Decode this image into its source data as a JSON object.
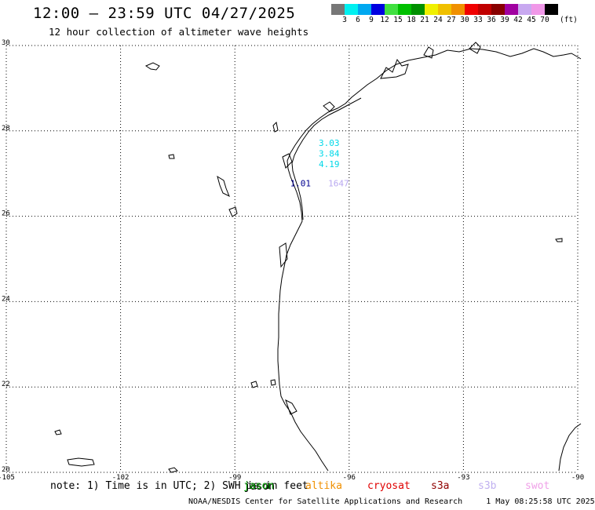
{
  "header": {
    "title": "12:00 – 23:59 UTC 04/27/2025",
    "subtitle": "12 hour collection of altimeter wave heights"
  },
  "scale": {
    "unit": "(ft)",
    "bins": [
      {
        "label": "3",
        "color": "#777777"
      },
      {
        "label": "6",
        "color": "#00f0f0"
      },
      {
        "label": "9",
        "color": "#00a8f0"
      },
      {
        "label": "12",
        "color": "#0000e0"
      },
      {
        "label": "15",
        "color": "#40e040"
      },
      {
        "label": "18",
        "color": "#00c000"
      },
      {
        "label": "21",
        "color": "#009000"
      },
      {
        "label": "24",
        "color": "#f0f000"
      },
      {
        "label": "27",
        "color": "#f0c000"
      },
      {
        "label": "30",
        "color": "#f09000"
      },
      {
        "label": "33",
        "color": "#f00000"
      },
      {
        "label": "36",
        "color": "#c00000"
      },
      {
        "label": "39",
        "color": "#880000"
      },
      {
        "label": "42",
        "color": "#a000a0"
      },
      {
        "label": "45",
        "color": "#c8a8f0"
      },
      {
        "label": "70",
        "color": "#f098e8"
      },
      {
        "label": "",
        "color": "#000000"
      }
    ]
  },
  "map": {
    "lon_range": [
      -105,
      -90
    ],
    "lat_range": [
      20,
      30
    ],
    "lon_ticks": [
      "-105",
      "-102",
      "-99",
      "-96",
      "-93",
      "-90"
    ],
    "lat_ticks": [
      "30",
      "28",
      "26",
      "24",
      "22",
      "20"
    ],
    "observations": [
      {
        "value": "3.03",
        "lon": -96.8,
        "lat": 27.65,
        "color": "#00d8e8"
      },
      {
        "value": "3.84",
        "lon": -96.8,
        "lat": 27.4,
        "color": "#00d8e8"
      },
      {
        "value": "4.19",
        "lon": -96.8,
        "lat": 27.15,
        "color": "#00d8e8"
      },
      {
        "value": "1.01",
        "lon": -97.55,
        "lat": 26.7,
        "color": "#000090"
      },
      {
        "value": "1647",
        "lon": -96.55,
        "lat": 26.7,
        "color": "#b8a8f0"
      }
    ]
  },
  "footer": {
    "note": "note: 1) Time is in UTC; 2) SWH is in feet",
    "satellites": [
      {
        "name": "jason",
        "color": "#00a000",
        "shadow": true
      },
      {
        "name": "altika",
        "color": "#f09000",
        "shadow": false
      },
      {
        "name": "cryosat",
        "color": "#e00000",
        "shadow": false
      },
      {
        "name": "s3a",
        "color": "#900000",
        "shadow": false
      },
      {
        "name": "s3b",
        "color": "#c0b0f0",
        "shadow": false
      },
      {
        "name": "swot",
        "color": "#f0a0e8",
        "shadow": false
      }
    ],
    "credit": "NOAA/NESDIS Center for Satellite Applications and Research",
    "timestamp": "1 May 08:25:58 UTC 2025"
  }
}
